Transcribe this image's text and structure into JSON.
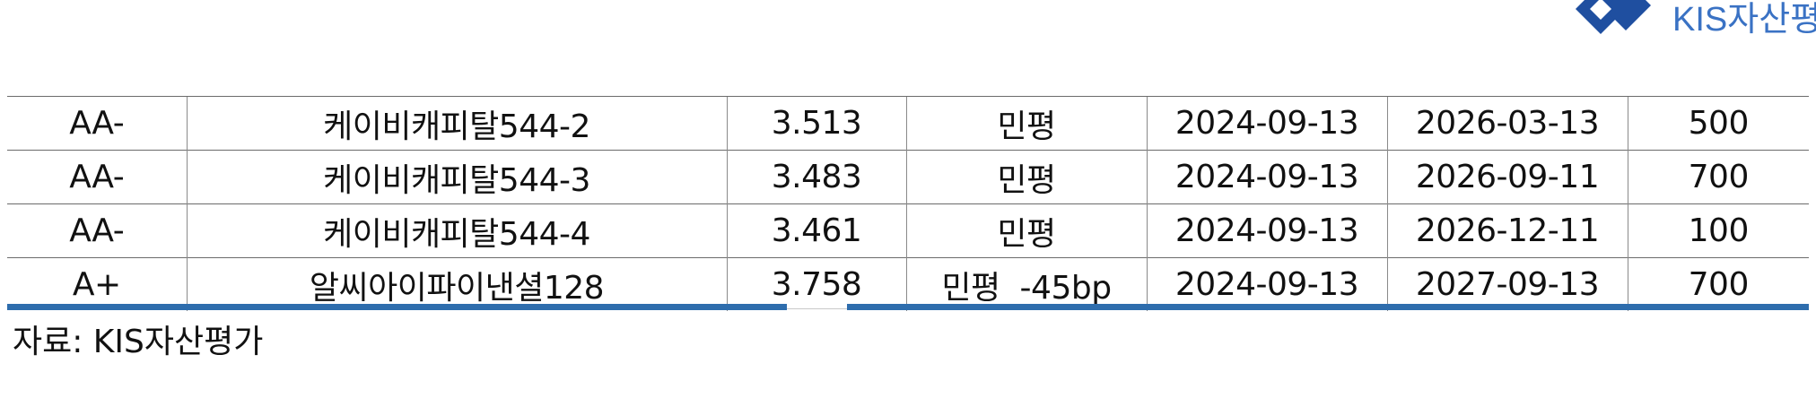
{
  "logo": {
    "text": "KIS자산평가",
    "icon": "kis-diamond-logo-icon",
    "color": "#1f4fa0"
  },
  "table": {
    "rows": [
      {
        "rating": "AA-",
        "issue": "케이비캐피탈544-2",
        "rate": "3.513",
        "basis": "민평",
        "issue_date": "2024-09-13",
        "maturity_date": "2026-03-13",
        "amount": "500"
      },
      {
        "rating": "AA-",
        "issue": "케이비캐피탈544-3",
        "rate": "3.483",
        "basis": "민평",
        "issue_date": "2024-09-13",
        "maturity_date": "2026-09-11",
        "amount": "700"
      },
      {
        "rating": "AA-",
        "issue": "케이비캐피탈544-4",
        "rate": "3.461",
        "basis": "민평",
        "issue_date": "2024-09-13",
        "maturity_date": "2026-12-11",
        "amount": "100"
      },
      {
        "rating": "A+",
        "issue": "알씨아이파이낸셜128",
        "rate": "3.758",
        "basis": "민평  -45bp",
        "issue_date": "2024-09-13",
        "maturity_date": "2027-09-13",
        "amount": "700"
      }
    ],
    "accent_color": "#2e6dad"
  },
  "source": "자료: KIS자산평가"
}
